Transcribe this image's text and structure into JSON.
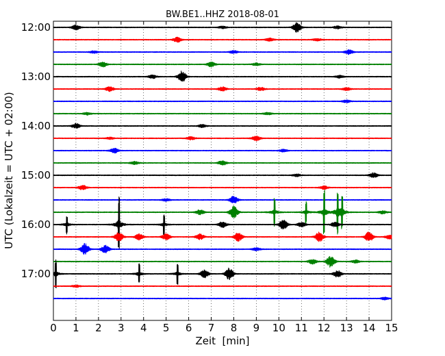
{
  "chart_data": {
    "type": "line",
    "title": "BW.BE1..HHZ 2018-08-01",
    "xlabel": "Zeit  [min]",
    "ylabel": "UTC (Lokalzeit = UTC + 02:00)",
    "xlim": [
      0,
      15
    ],
    "x_ticks": [
      "0",
      "1",
      "2",
      "3",
      "4",
      "5",
      "6",
      "7",
      "8",
      "9",
      "10",
      "11",
      "12",
      "13",
      "14",
      "15"
    ],
    "y_ticks": [
      "12:00",
      "13:00",
      "14:00",
      "15:00",
      "16:00",
      "17:00"
    ],
    "grid": true,
    "trace_colors": [
      "#000000",
      "#ff0000",
      "#0000ff",
      "#008000"
    ],
    "traces": [
      {
        "start": "12:00",
        "events": [
          [
            1.0,
            0.5
          ],
          [
            10.8,
            1.0
          ],
          [
            7.5,
            0.25
          ],
          [
            12.6,
            0.3
          ]
        ]
      },
      {
        "start": "12:15",
        "events": [
          [
            5.5,
            0.5
          ],
          [
            9.6,
            0.3
          ],
          [
            11.7,
            0.25
          ]
        ]
      },
      {
        "start": "12:30",
        "events": [
          [
            13.1,
            0.5
          ],
          [
            1.8,
            0.25
          ],
          [
            8.0,
            0.3
          ]
        ]
      },
      {
        "start": "12:45",
        "events": [
          [
            2.2,
            0.5
          ],
          [
            7.0,
            0.5
          ],
          [
            9.0,
            0.25
          ]
        ]
      },
      {
        "start": "13:00",
        "events": [
          [
            5.7,
            1.2
          ],
          [
            4.4,
            0.35
          ],
          [
            12.7,
            0.25
          ]
        ]
      },
      {
        "start": "13:15",
        "events": [
          [
            2.5,
            0.5
          ],
          [
            7.5,
            0.4
          ],
          [
            9.2,
            0.35
          ],
          [
            13.0,
            0.3
          ]
        ]
      },
      {
        "start": "13:30",
        "events": [
          [
            13.0,
            0.25
          ]
        ]
      },
      {
        "start": "13:45",
        "events": [
          [
            1.5,
            0.25
          ],
          [
            9.5,
            0.25
          ]
        ]
      },
      {
        "start": "14:00",
        "events": [
          [
            1.0,
            0.5
          ],
          [
            6.6,
            0.3
          ]
        ]
      },
      {
        "start": "14:15",
        "events": [
          [
            9.0,
            0.5
          ],
          [
            6.1,
            0.35
          ],
          [
            2.5,
            0.2
          ]
        ]
      },
      {
        "start": "14:30",
        "events": [
          [
            2.7,
            0.5
          ],
          [
            10.2,
            0.25
          ]
        ]
      },
      {
        "start": "14:45",
        "events": [
          [
            7.5,
            0.5
          ],
          [
            3.6,
            0.3
          ]
        ]
      },
      {
        "start": "15:00",
        "events": [
          [
            14.2,
            0.5
          ],
          [
            10.8,
            0.25
          ]
        ]
      },
      {
        "start": "15:15",
        "events": [
          [
            1.3,
            0.5
          ],
          [
            12.0,
            0.35
          ]
        ]
      },
      {
        "start": "15:30",
        "events": [
          [
            8.0,
            0.8
          ],
          [
            5.0,
            0.25
          ]
        ]
      },
      {
        "start": "15:45",
        "events": [
          [
            8.0,
            1.3
          ],
          [
            9.8,
            2.2
          ],
          [
            11.2,
            1.6
          ],
          [
            12.0,
            3.6
          ],
          [
            12.6,
            3.3
          ],
          [
            12.8,
            2.8
          ],
          [
            6.5,
            0.5
          ],
          [
            14.6,
            0.3
          ]
        ]
      },
      {
        "start": "16:00",
        "events": [
          [
            0.6,
            1.5
          ],
          [
            2.9,
            4.2
          ],
          [
            4.9,
            1.5
          ],
          [
            7.5,
            0.6
          ],
          [
            10.2,
            1.0
          ],
          [
            11.0,
            0.5
          ],
          [
            12.5,
            0.5
          ]
        ]
      },
      {
        "start": "16:15",
        "events": [
          [
            2.9,
            1.0
          ],
          [
            3.8,
            0.6
          ],
          [
            5.0,
            0.6
          ],
          [
            6.5,
            0.6
          ],
          [
            8.2,
            0.9
          ],
          [
            11.8,
            1.0
          ],
          [
            14.0,
            1.0
          ],
          [
            14.9,
            0.4
          ]
        ]
      },
      {
        "start": "16:30",
        "events": [
          [
            1.4,
            1.2
          ],
          [
            2.3,
            0.8
          ],
          [
            9.0,
            0.3
          ]
        ]
      },
      {
        "start": "16:45",
        "events": [
          [
            12.3,
            1.2
          ],
          [
            11.5,
            0.5
          ],
          [
            13.4,
            0.3
          ]
        ]
      },
      {
        "start": "17:00",
        "events": [
          [
            0.1,
            2.2
          ],
          [
            3.8,
            1.6
          ],
          [
            5.5,
            1.6
          ],
          [
            6.7,
            0.8
          ],
          [
            7.8,
            1.2
          ],
          [
            12.6,
            0.7
          ]
        ]
      },
      {
        "start": "17:15",
        "events": [
          [
            1.0,
            0.2
          ]
        ]
      },
      {
        "start": "17:30",
        "events": [
          [
            14.7,
            0.25
          ]
        ]
      }
    ]
  }
}
